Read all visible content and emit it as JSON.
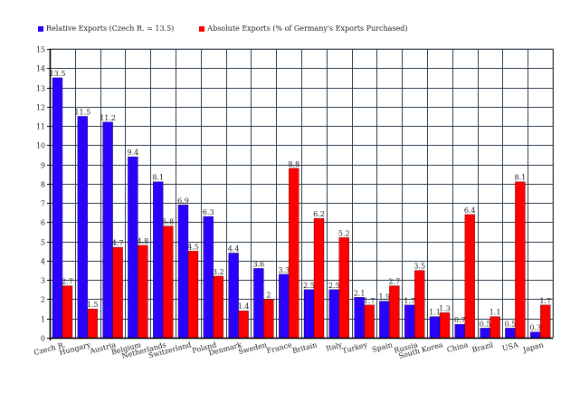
{
  "legend": {
    "series0": "Relative Exports (Czech R. = 13.5)",
    "series1": "Absolute Exports (% of Germany's Exports Purchased)"
  },
  "colors": {
    "series0": "#2a00ff",
    "series1": "#ff0000",
    "grid": "#2f3f4f"
  },
  "chart_data": {
    "type": "bar",
    "title": "",
    "xlabel": "",
    "ylabel": "",
    "ylim": [
      0,
      15
    ],
    "yticks": [
      0,
      1,
      2,
      3,
      4,
      5,
      6,
      7,
      8,
      9,
      10,
      11,
      12,
      13,
      14,
      15
    ],
    "grid": true,
    "legend_position": "top",
    "categories": [
      "Czech R.",
      "Hungary",
      "Austria",
      "Belgium",
      "Netherlands",
      "Switzerland",
      "Poland",
      "Denmark",
      "Sweden",
      "France",
      "Britain",
      "Italy",
      "Turkey",
      "Spain",
      "Russia",
      "South Korea",
      "China",
      "Brazil",
      "USA",
      "Japan"
    ],
    "series": [
      {
        "name": "Relative Exports (Czech R. = 13.5)",
        "values": [
          13.5,
          11.5,
          11.2,
          9.4,
          8.1,
          6.9,
          6.3,
          4.4,
          3.6,
          3.3,
          2.5,
          2.5,
          2.1,
          1.9,
          1.7,
          1.1,
          0.7,
          0.5,
          0.5,
          0.3
        ]
      },
      {
        "name": "Absolute Exports (% of Germany's Exports Purchased)",
        "values": [
          2.7,
          1.5,
          4.7,
          4.8,
          5.8,
          4.5,
          3.2,
          1.4,
          2,
          8.8,
          6.2,
          5.2,
          1.7,
          2.7,
          3.5,
          1.3,
          6.4,
          1.1,
          8.1,
          1.7
        ]
      }
    ]
  }
}
